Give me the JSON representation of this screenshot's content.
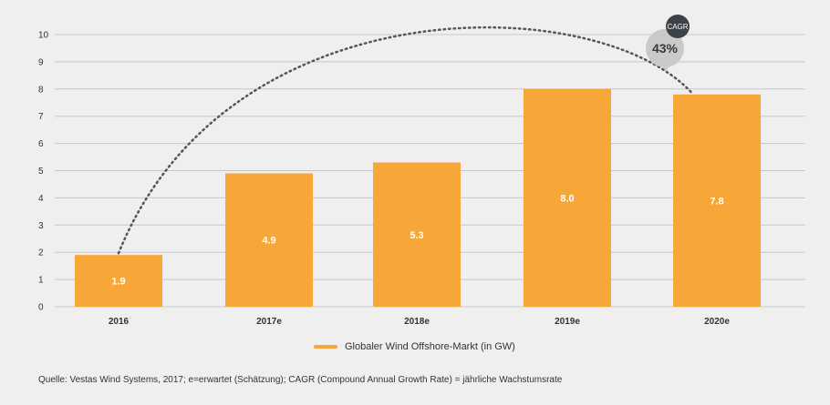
{
  "chart_data": {
    "type": "bar",
    "categories": [
      "2016",
      "2017e",
      "2018e",
      "2019e",
      "2020e"
    ],
    "series": [
      {
        "name": "Globaler Wind Offshore-Markt (in GW)",
        "values": [
          1.9,
          4.9,
          5.3,
          8.0,
          7.8
        ]
      }
    ],
    "value_labels": [
      "1.9",
      "4.9",
      "5.3",
      "8.0",
      "7.8"
    ],
    "ylim": [
      0,
      10
    ],
    "yticks": [
      "0",
      "1",
      "2",
      "3",
      "4",
      "5",
      "6",
      "7",
      "8",
      "9",
      "10"
    ],
    "grid": true,
    "legend_position": "bottom-center",
    "annotation": {
      "tag": "CAGR",
      "value": "43%"
    },
    "source": "Quelle: Vestas Wind Systems, 2017; e=erwartet (Schätzung); CAGR (Compound Annual Growth Rate) = jährliche Wachstumsrate"
  },
  "colors": {
    "bar": "#f7a738",
    "grid": "#c8c8c8",
    "dotted_arc": "#555555",
    "background": "#efefef"
  }
}
